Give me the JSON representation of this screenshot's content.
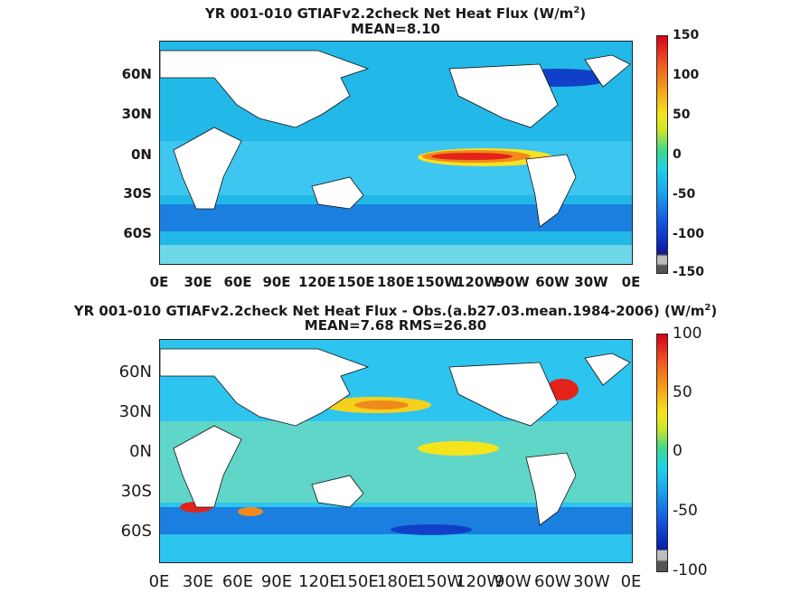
{
  "chart_data": [
    {
      "type": "heatmap",
      "title": "YR 001-010 GTIAFv2.2check  Net Heat Flux (W/m",
      "title_sup": "2",
      "title_end": ")",
      "subtitle": "MEAN=8.10",
      "x_ticks": [
        "0E",
        "30E",
        "60E",
        "90E",
        "120E",
        "150E",
        "180E",
        "150W",
        "120W",
        "90W",
        "60W",
        "30W",
        "0E"
      ],
      "y_ticks": [
        "60N",
        "30N",
        "0N",
        "30S",
        "60S"
      ],
      "colorbar_ticks": [
        "150",
        "100",
        "50",
        "0",
        "-50",
        "-100",
        "-150"
      ],
      "clim": [
        -150,
        150
      ]
    },
    {
      "type": "heatmap",
      "title": "YR 001-010 GTIAFv2.2check  Net Heat Flux - Obs.(a.b27.03.mean.1984-2006) (W/m",
      "title_sup": "2",
      "title_end": ")",
      "subtitle": "MEAN=7.68 RMS=26.80",
      "x_ticks": [
        "0E",
        "30E",
        "60E",
        "90E",
        "120E",
        "150E",
        "180E",
        "150W",
        "120W",
        "90W",
        "60W",
        "30W",
        "0E"
      ],
      "y_ticks": [
        "60N",
        "30N",
        "0N",
        "30S",
        "60S"
      ],
      "colorbar_ticks": [
        "100",
        "50",
        "0",
        "-50",
        "-100"
      ],
      "clim": [
        -100,
        100
      ]
    }
  ]
}
